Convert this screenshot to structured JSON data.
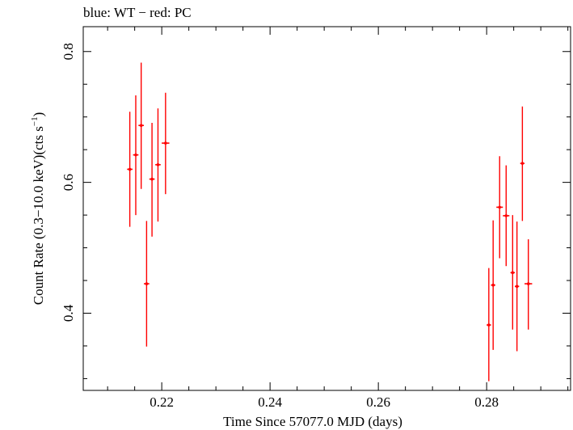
{
  "chart_data": {
    "type": "scatter",
    "title": "blue: WT − red: PC",
    "xlabel": "Time Since 57077.0 MJD (days)",
    "ylabel_main": "Count Rate (0.3−10.0 keV)(cts s",
    "ylabel_sup": "−1",
    "ylabel_end": ")",
    "xlim": [
      0.2055,
      0.2955
    ],
    "ylim": [
      0.282,
      0.838
    ],
    "xticks": [
      0.22,
      0.24,
      0.26,
      0.28
    ],
    "xtick_labels": [
      "0.22",
      "0.24",
      "0.26",
      "0.28"
    ],
    "yticks": [
      0.4,
      0.6,
      0.8
    ],
    "ytick_labels": [
      "0.4",
      "0.6",
      "0.8"
    ],
    "grid": false,
    "series": [
      {
        "color": "#ff0000",
        "points": [
          {
            "x": 0.2141,
            "y": 0.62,
            "xerr": 0.0005,
            "ylo": 0.532,
            "yhi": 0.708
          },
          {
            "x": 0.2152,
            "y": 0.642,
            "xerr": 0.0005,
            "ylo": 0.55,
            "yhi": 0.733
          },
          {
            "x": 0.2162,
            "y": 0.687,
            "xerr": 0.0005,
            "ylo": 0.59,
            "yhi": 0.783
          },
          {
            "x": 0.2172,
            "y": 0.445,
            "xerr": 0.0005,
            "ylo": 0.349,
            "yhi": 0.541
          },
          {
            "x": 0.2182,
            "y": 0.605,
            "xerr": 0.0005,
            "ylo": 0.517,
            "yhi": 0.691
          },
          {
            "x": 0.2193,
            "y": 0.627,
            "xerr": 0.0005,
            "ylo": 0.54,
            "yhi": 0.713
          },
          {
            "x": 0.2207,
            "y": 0.66,
            "xerr": 0.0007,
            "ylo": 0.582,
            "yhi": 0.737
          },
          {
            "x": 0.2804,
            "y": 0.382,
            "xerr": 0.0004,
            "ylo": 0.296,
            "yhi": 0.469
          },
          {
            "x": 0.2812,
            "y": 0.443,
            "xerr": 0.0004,
            "ylo": 0.344,
            "yhi": 0.542
          },
          {
            "x": 0.2824,
            "y": 0.562,
            "xerr": 0.0006,
            "ylo": 0.484,
            "yhi": 0.64
          },
          {
            "x": 0.2836,
            "y": 0.549,
            "xerr": 0.0006,
            "ylo": 0.472,
            "yhi": 0.626
          },
          {
            "x": 0.2848,
            "y": 0.462,
            "xerr": 0.0004,
            "ylo": 0.375,
            "yhi": 0.55
          },
          {
            "x": 0.2856,
            "y": 0.441,
            "xerr": 0.0004,
            "ylo": 0.342,
            "yhi": 0.54
          },
          {
            "x": 0.2866,
            "y": 0.629,
            "xerr": 0.0004,
            "ylo": 0.541,
            "yhi": 0.716
          },
          {
            "x": 0.2877,
            "y": 0.445,
            "xerr": 0.0007,
            "ylo": 0.375,
            "yhi": 0.513
          }
        ]
      }
    ]
  }
}
